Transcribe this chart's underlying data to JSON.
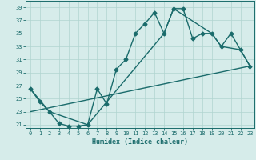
{
  "xlabel": "Humidex (Indice chaleur)",
  "xlim": [
    -0.5,
    23.5
  ],
  "ylim": [
    20.5,
    40
  ],
  "yticks": [
    21,
    23,
    25,
    27,
    29,
    31,
    33,
    35,
    37,
    39
  ],
  "xticks": [
    0,
    1,
    2,
    3,
    4,
    5,
    6,
    7,
    8,
    9,
    10,
    11,
    12,
    13,
    14,
    15,
    16,
    17,
    18,
    19,
    20,
    21,
    22,
    23
  ],
  "bg_color": "#d6ecea",
  "grid_color": "#b0d4d0",
  "line_color": "#1a6b6b",
  "curve1_x": [
    0,
    1,
    2,
    3,
    4,
    5,
    6,
    7,
    8,
    9,
    10,
    11,
    12,
    13,
    14,
    15,
    16,
    17,
    18,
    19,
    20,
    21,
    22,
    23
  ],
  "curve1_y": [
    26.5,
    24.5,
    23.0,
    21.2,
    20.8,
    20.8,
    21.0,
    26.5,
    24.2,
    29.5,
    31.0,
    35.0,
    36.5,
    38.2,
    35.0,
    38.8,
    38.8,
    34.2,
    35.0,
    35.0,
    33.0,
    35.0,
    32.5,
    30.0
  ],
  "curve2_x": [
    0,
    2,
    6,
    14,
    15,
    19,
    20,
    22,
    23
  ],
  "curve2_y": [
    26.5,
    23.0,
    21.0,
    35.0,
    38.8,
    35.0,
    33.0,
    32.5,
    30.0
  ],
  "curve3_x": [
    0,
    23
  ],
  "curve3_y": [
    23.0,
    30.0
  ],
  "marker_size": 2.5,
  "line_width": 1.0
}
